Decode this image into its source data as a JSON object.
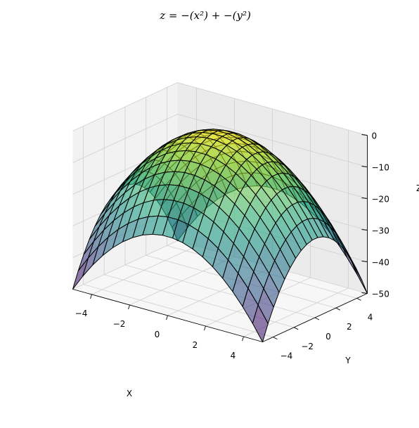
{
  "chart_data": {
    "type": "surface",
    "title": "z = −(x²) + −(y²)",
    "function": "z = -(x^2) - (y^2)",
    "xlabel": "X",
    "ylabel": "Y",
    "zlabel": "Z",
    "xlim": [
      -5,
      5
    ],
    "ylim": [
      -5,
      5
    ],
    "zlim": [
      -50,
      0
    ],
    "x_ticks": [
      -4,
      -2,
      0,
      2,
      4
    ],
    "y_ticks": [
      -4,
      -2,
      0,
      2,
      4
    ],
    "z_ticks": [
      0,
      -10,
      -20,
      -30,
      -40,
      -50
    ],
    "x_tick_labels": [
      "−4",
      "−2",
      "0",
      "2",
      "4"
    ],
    "y_tick_labels": [
      "−4",
      "−2",
      "0",
      "2",
      "4"
    ],
    "z_tick_labels": [
      "0",
      "−10",
      "−20",
      "−30",
      "−40",
      "−50"
    ],
    "grid_points": 20,
    "grid": true,
    "colormap": "viridis",
    "alpha": 0.6,
    "edge_color": "#000000",
    "z_range_of_surface": [
      -50,
      0
    ]
  },
  "colors": {
    "pane_back": "#ebebeb",
    "pane_side": "#f2f2f2",
    "pane_floor": "#f7f7f7",
    "grid_line": "#cfcfcf"
  }
}
